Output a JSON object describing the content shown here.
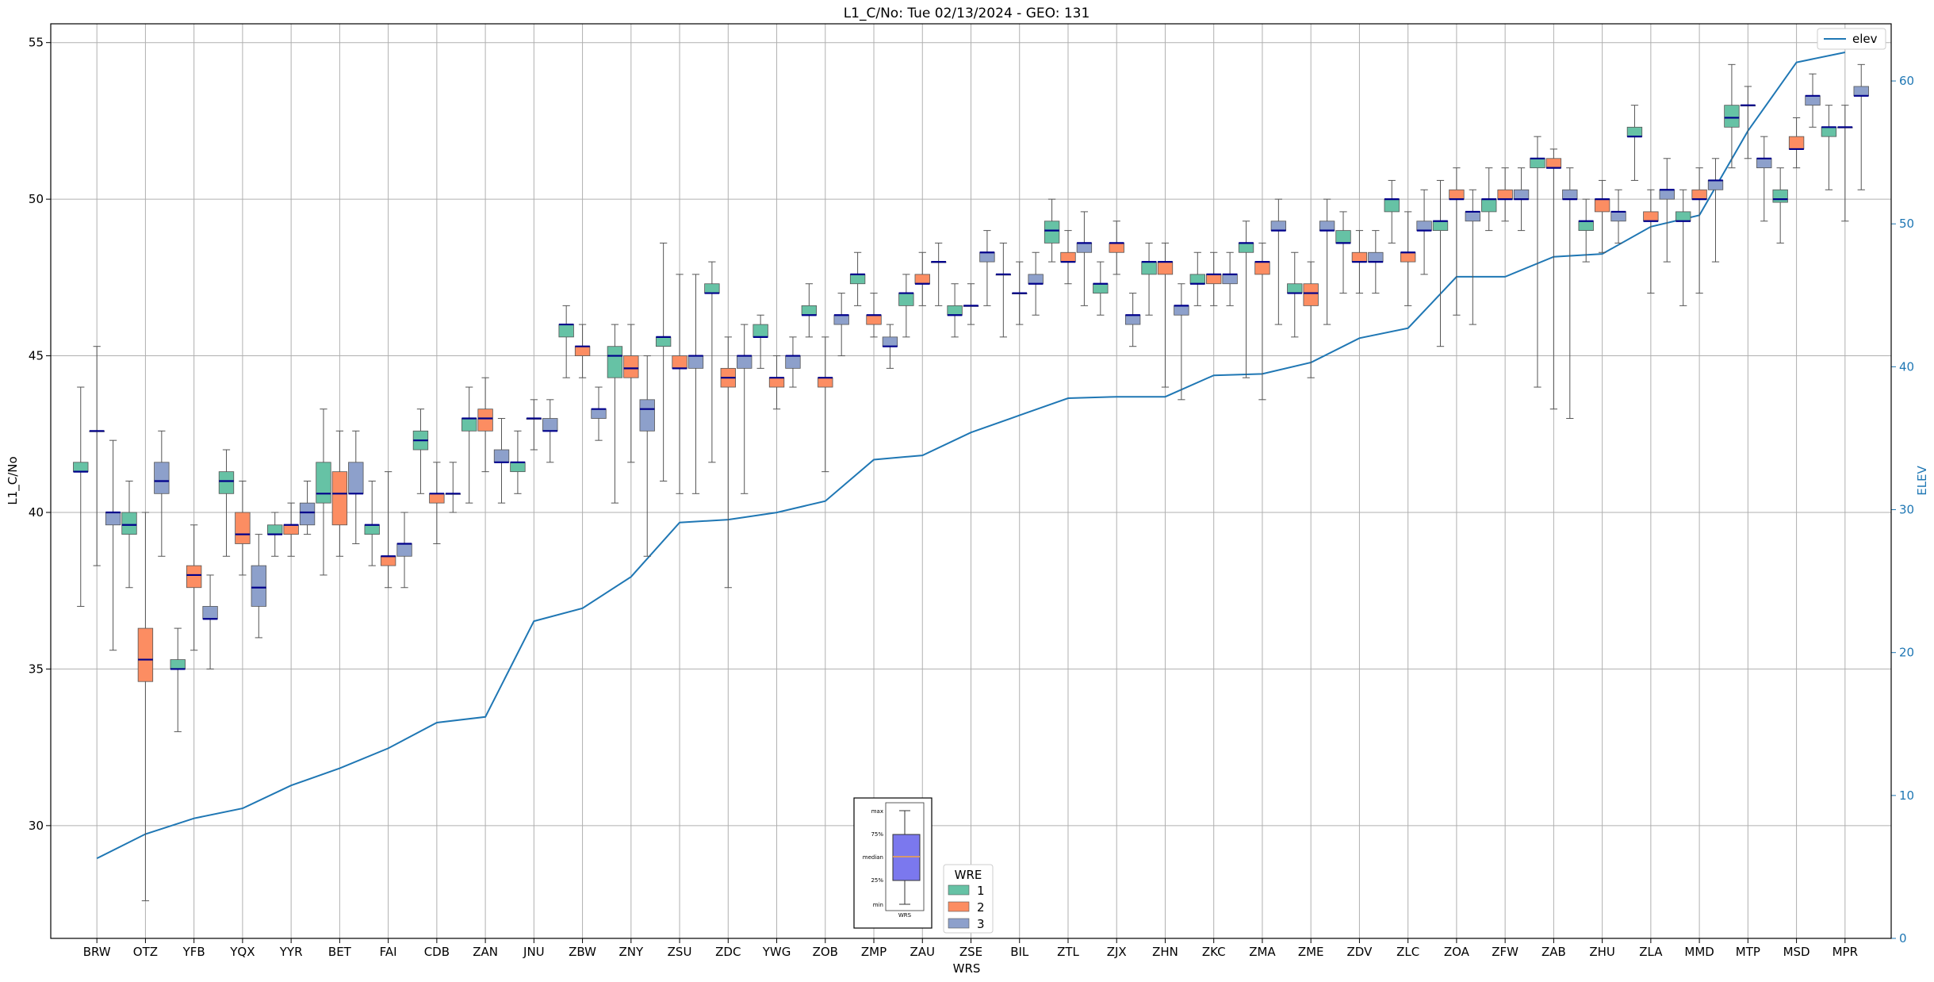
{
  "chart_data": {
    "type": "box",
    "title": "L1_C/No: Tue 02/13/2024 - GEO: 131",
    "xlabel": "WRS",
    "ylabel": "L1_C/No",
    "ylabel_right": "ELEV",
    "ylim": [
      26.4,
      55.6
    ],
    "ylim_right": [
      0,
      64
    ],
    "yticks": [
      30,
      35,
      40,
      45,
      50,
      55
    ],
    "yticks_right": [
      0,
      10,
      20,
      30,
      40,
      50,
      60
    ],
    "grid": true,
    "categories": [
      "BRW",
      "OTZ",
      "YFB",
      "YQX",
      "YYR",
      "BET",
      "FAI",
      "CDB",
      "ZAN",
      "JNU",
      "ZBW",
      "ZNY",
      "ZSU",
      "ZDC",
      "YWG",
      "ZOB",
      "ZMP",
      "ZAU",
      "ZSE",
      "BIL",
      "ZTL",
      "ZJX",
      "ZHN",
      "ZKC",
      "ZMA",
      "ZME",
      "ZDV",
      "ZLC",
      "ZOA",
      "ZFW",
      "ZAB",
      "ZHU",
      "ZLA",
      "MMD",
      "MTP",
      "MSD",
      "MPR"
    ],
    "colors": {
      "1": "#66c2a5",
      "2": "#fc8d62",
      "3": "#8da0cb",
      "median": "#00008b",
      "elev": "#1f77b4",
      "whisker": "#555555"
    },
    "box_legend": {
      "title": "WRE",
      "entries": [
        "1",
        "2",
        "3"
      ],
      "placement": "bottom-center"
    },
    "line_legend": {
      "entries": [
        "elev"
      ],
      "placement": "upper-right"
    },
    "inset": {
      "labels": [
        "max",
        "75%",
        "median",
        "25%",
        "min"
      ],
      "xlabel": "WRS"
    },
    "boxes": [
      [
        [
          37.0,
          41.3,
          41.3,
          41.6,
          44.0
        ],
        [
          38.3,
          42.6,
          42.6,
          42.6,
          45.3
        ],
        [
          35.6,
          39.6,
          40.0,
          40.0,
          42.3
        ]
      ],
      [
        [
          37.6,
          39.3,
          39.6,
          40.0,
          41.0
        ],
        [
          27.6,
          34.6,
          35.3,
          36.3,
          40.0
        ],
        [
          38.6,
          40.6,
          41.0,
          41.6,
          42.6
        ]
      ],
      [
        [
          33.0,
          35.0,
          35.0,
          35.3,
          36.3
        ],
        [
          35.6,
          37.6,
          38.0,
          38.3,
          39.6
        ],
        [
          35.0,
          36.6,
          36.6,
          37.0,
          38.0
        ]
      ],
      [
        [
          38.6,
          40.6,
          41.0,
          41.3,
          42.0
        ],
        [
          38.0,
          39.0,
          39.3,
          40.0,
          41.0
        ],
        [
          36.0,
          37.0,
          37.6,
          38.3,
          39.3
        ]
      ],
      [
        [
          38.6,
          39.3,
          39.3,
          39.6,
          40.0
        ],
        [
          38.6,
          39.3,
          39.6,
          39.6,
          40.3
        ],
        [
          39.3,
          39.6,
          40.0,
          40.3,
          41.0
        ]
      ],
      [
        [
          38.0,
          40.3,
          40.6,
          41.6,
          43.3
        ],
        [
          38.6,
          39.6,
          40.6,
          41.3,
          42.6
        ],
        [
          39.0,
          40.6,
          40.6,
          41.6,
          42.6
        ]
      ],
      [
        [
          38.3,
          39.3,
          39.6,
          39.6,
          41.0
        ],
        [
          37.6,
          38.3,
          38.6,
          38.6,
          41.3
        ],
        [
          37.6,
          38.6,
          39.0,
          39.0,
          40.0
        ]
      ],
      [
        [
          40.6,
          42.0,
          42.3,
          42.6,
          43.3
        ],
        [
          39.0,
          40.3,
          40.6,
          40.6,
          41.6
        ],
        [
          40.0,
          40.6,
          40.6,
          40.6,
          41.6
        ]
      ],
      [
        [
          40.3,
          42.6,
          43.0,
          43.0,
          44.0
        ],
        [
          41.3,
          42.6,
          43.0,
          43.3,
          44.3
        ],
        [
          40.3,
          41.6,
          41.6,
          42.0,
          43.0
        ]
      ],
      [
        [
          40.6,
          41.3,
          41.6,
          41.6,
          42.6
        ],
        [
          42.0,
          43.0,
          43.0,
          43.0,
          43.6
        ],
        [
          41.6,
          42.6,
          42.6,
          43.0,
          43.6
        ]
      ],
      [
        [
          44.3,
          45.6,
          46.0,
          46.0,
          46.6
        ],
        [
          44.3,
          45.0,
          45.3,
          45.3,
          46.0
        ],
        [
          42.3,
          43.0,
          43.3,
          43.3,
          44.0
        ]
      ],
      [
        [
          40.3,
          44.3,
          45.0,
          45.3,
          46.0
        ],
        [
          41.6,
          44.3,
          44.6,
          45.0,
          46.0
        ],
        [
          38.6,
          42.6,
          43.3,
          43.6,
          45.0
        ]
      ],
      [
        [
          41.0,
          45.3,
          45.6,
          45.6,
          48.6
        ],
        [
          40.6,
          44.6,
          44.6,
          45.0,
          47.6
        ],
        [
          40.6,
          44.6,
          45.0,
          45.0,
          47.6
        ]
      ],
      [
        [
          41.6,
          47.0,
          47.0,
          47.3,
          48.0
        ],
        [
          37.6,
          44.0,
          44.3,
          44.6,
          45.6
        ],
        [
          40.6,
          44.6,
          45.0,
          45.0,
          46.0
        ]
      ],
      [
        [
          44.6,
          45.6,
          45.6,
          46.0,
          46.3
        ],
        [
          43.3,
          44.0,
          44.3,
          44.3,
          45.0
        ],
        [
          44.0,
          44.6,
          45.0,
          45.0,
          45.6
        ]
      ],
      [
        [
          45.6,
          46.3,
          46.3,
          46.6,
          47.3
        ],
        [
          41.3,
          44.0,
          44.3,
          44.3,
          45.6
        ],
        [
          45.0,
          46.0,
          46.3,
          46.3,
          47.0
        ]
      ],
      [
        [
          46.6,
          47.3,
          47.6,
          47.6,
          48.3
        ],
        [
          45.6,
          46.0,
          46.3,
          46.3,
          47.0
        ],
        [
          44.6,
          45.3,
          45.3,
          45.6,
          46.0
        ]
      ],
      [
        [
          45.6,
          46.6,
          47.0,
          47.0,
          47.6
        ],
        [
          46.6,
          47.3,
          47.3,
          47.6,
          48.3
        ],
        [
          46.6,
          48.0,
          48.0,
          48.0,
          48.6
        ]
      ],
      [
        [
          45.6,
          46.3,
          46.3,
          46.6,
          47.3
        ],
        [
          46.0,
          46.6,
          46.6,
          46.6,
          47.3
        ],
        [
          46.6,
          48.0,
          48.3,
          48.3,
          49.0
        ]
      ],
      [
        [
          45.6,
          47.6,
          47.6,
          47.6,
          48.6
        ],
        [
          46.0,
          47.0,
          47.0,
          47.0,
          48.0
        ],
        [
          46.3,
          47.3,
          47.3,
          47.6,
          48.3
        ]
      ],
      [
        [
          48.0,
          48.6,
          49.0,
          49.3,
          50.0
        ],
        [
          47.3,
          48.0,
          48.0,
          48.3,
          49.0
        ],
        [
          46.6,
          48.3,
          48.6,
          48.6,
          49.6
        ]
      ],
      [
        [
          46.3,
          47.0,
          47.3,
          47.3,
          48.0
        ],
        [
          47.6,
          48.3,
          48.6,
          48.6,
          49.3
        ],
        [
          45.3,
          46.0,
          46.3,
          46.3,
          47.0
        ]
      ],
      [
        [
          46.3,
          47.6,
          48.0,
          48.0,
          48.6
        ],
        [
          44.0,
          47.6,
          48.0,
          48.0,
          48.6
        ],
        [
          43.6,
          46.3,
          46.6,
          46.6,
          47.3
        ]
      ],
      [
        [
          46.6,
          47.3,
          47.3,
          47.6,
          48.3
        ],
        [
          46.6,
          47.3,
          47.6,
          47.6,
          48.3
        ],
        [
          46.6,
          47.3,
          47.6,
          47.6,
          48.3
        ]
      ],
      [
        [
          44.3,
          48.3,
          48.6,
          48.6,
          49.3
        ],
        [
          43.6,
          47.6,
          48.0,
          48.0,
          48.6
        ],
        [
          46.0,
          49.0,
          49.0,
          49.3,
          50.0
        ]
      ],
      [
        [
          45.6,
          47.0,
          47.0,
          47.3,
          48.3
        ],
        [
          44.3,
          46.6,
          47.0,
          47.3,
          48.0
        ],
        [
          46.0,
          49.0,
          49.0,
          49.3,
          50.0
        ]
      ],
      [
        [
          47.0,
          48.6,
          48.6,
          49.0,
          49.6
        ],
        [
          47.0,
          48.0,
          48.0,
          48.3,
          49.0
        ],
        [
          47.0,
          48.0,
          48.0,
          48.3,
          49.0
        ]
      ],
      [
        [
          48.6,
          49.6,
          50.0,
          50.0,
          50.6
        ],
        [
          46.6,
          48.0,
          48.3,
          48.3,
          49.6
        ],
        [
          47.6,
          49.0,
          49.0,
          49.3,
          50.3
        ]
      ],
      [
        [
          45.3,
          49.0,
          49.3,
          49.3,
          50.6
        ],
        [
          46.3,
          50.0,
          50.0,
          50.3,
          51.0
        ],
        [
          46.0,
          49.3,
          49.6,
          49.6,
          50.3
        ]
      ],
      [
        [
          49.0,
          49.6,
          50.0,
          50.0,
          51.0
        ],
        [
          49.3,
          50.0,
          50.0,
          50.3,
          51.0
        ],
        [
          49.0,
          50.0,
          50.0,
          50.3,
          51.0
        ]
      ],
      [
        [
          44.0,
          51.0,
          51.3,
          51.3,
          52.0
        ],
        [
          43.3,
          51.0,
          51.0,
          51.3,
          51.6
        ],
        [
          43.0,
          50.0,
          50.0,
          50.3,
          51.0
        ]
      ],
      [
        [
          48.0,
          49.0,
          49.3,
          49.3,
          50.0
        ],
        [
          48.3,
          49.6,
          50.0,
          50.0,
          50.6
        ],
        [
          48.6,
          49.3,
          49.6,
          49.6,
          50.3
        ]
      ],
      [
        [
          50.6,
          52.0,
          52.0,
          52.3,
          53.0
        ],
        [
          47.0,
          49.3,
          49.3,
          49.6,
          50.3
        ],
        [
          48.0,
          50.0,
          50.3,
          50.3,
          51.3
        ]
      ],
      [
        [
          46.6,
          49.3,
          49.3,
          49.6,
          50.3
        ],
        [
          47.0,
          50.0,
          50.0,
          50.3,
          51.0
        ],
        [
          48.0,
          50.3,
          50.6,
          50.6,
          51.3
        ]
      ],
      [
        [
          51.0,
          52.3,
          52.6,
          53.0,
          54.3
        ],
        [
          51.3,
          53.0,
          53.0,
          53.0,
          53.6
        ],
        [
          49.3,
          51.0,
          51.3,
          51.3,
          52.0
        ]
      ],
      [
        [
          48.6,
          49.9,
          50.0,
          50.3,
          51.0
        ],
        [
          51.0,
          51.6,
          51.6,
          52.0,
          52.6
        ],
        [
          52.3,
          53.0,
          53.3,
          53.3,
          54.0
        ]
      ],
      [
        [
          50.3,
          52.0,
          52.3,
          52.3,
          53.0
        ],
        [
          49.3,
          52.3,
          52.3,
          52.3,
          53.0
        ],
        [
          50.3,
          53.3,
          53.3,
          53.6,
          54.3
        ]
      ]
    ],
    "elev": {
      "name": "elev",
      "values": [
        5.6,
        7.3,
        8.4,
        9.1,
        10.7,
        11.9,
        13.3,
        15.1,
        15.5,
        22.2,
        23.1,
        25.3,
        29.1,
        29.3,
        29.8,
        30.6,
        33.5,
        33.8,
        35.4,
        36.6,
        37.8,
        37.9,
        37.9,
        39.4,
        39.5,
        40.3,
        42.0,
        42.7,
        46.3,
        46.3,
        47.7,
        47.9,
        49.8,
        50.6,
        56.5,
        61.3,
        62.0
      ]
    }
  }
}
